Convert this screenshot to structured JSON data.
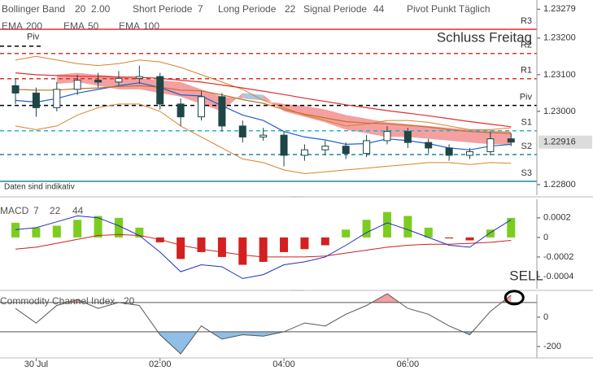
{
  "header": {
    "bollinger": {
      "label": "Bollinger Band",
      "period": 20,
      "width": "2.00"
    },
    "short": {
      "label": "Short Periode",
      "value": 7
    },
    "long": {
      "label": "Long Periode",
      "value": 22
    },
    "signal": {
      "label": "Signal Periode",
      "value": 44
    },
    "pivot": "Pivot Punkt Täglich"
  },
  "chart_data": [
    {
      "type": "candlestick",
      "x": [
        -20,
        0,
        20,
        40,
        60,
        80,
        100,
        120,
        140,
        160,
        180,
        200,
        220,
        240,
        260,
        280,
        300,
        320,
        340,
        360,
        380,
        400,
        420,
        440,
        460
      ],
      "xlim": [
        -35,
        485
      ],
      "open": [
        1.2307,
        1.2305,
        1.2301,
        1.2306,
        1.23085,
        1.2308,
        1.2309,
        1.23095,
        1.2302,
        1.22985,
        1.2304,
        1.2296,
        1.2293,
        1.22935,
        1.2288,
        1.22895,
        1.22905,
        1.22885,
        1.2292,
        1.22945,
        1.22915,
        1.229,
        1.2288,
        1.2289,
        1.22925
      ],
      "high": [
        1.2309,
        1.23065,
        1.2308,
        1.231,
        1.23105,
        1.2311,
        1.23125,
        1.23105,
        1.23035,
        1.23055,
        1.2305,
        1.22975,
        1.22955,
        1.22945,
        1.2291,
        1.2292,
        1.22915,
        1.22935,
        1.2296,
        1.22955,
        1.22925,
        1.2291,
        1.229,
        1.22945,
        1.2294
      ],
      "low": [
        1.2302,
        1.22985,
        1.23,
        1.23045,
        1.23065,
        1.2307,
        1.23075,
        1.23005,
        1.2296,
        1.22975,
        1.22945,
        1.22915,
        1.2292,
        1.2285,
        1.22865,
        1.2288,
        1.2287,
        1.22875,
        1.2291,
        1.229,
        1.22885,
        1.22865,
        1.2287,
        1.2288,
        1.22905
      ],
      "close": [
        1.2305,
        1.2301,
        1.2306,
        1.23085,
        1.2308,
        1.2309,
        1.23095,
        1.2302,
        1.22985,
        1.2304,
        1.2296,
        1.2293,
        1.22935,
        1.2288,
        1.22895,
        1.22905,
        1.22885,
        1.2292,
        1.22945,
        1.22915,
        1.229,
        1.2288,
        1.2289,
        1.22925,
        1.22916
      ],
      "up_color": "#ffffff",
      "down_color": "#1e4646",
      "ylim": [
        1.22771,
        1.23304
      ],
      "yticks": [
        1.23279,
        {
          "value": 1.232,
          "label": "1.23200"
        },
        {
          "value": 1.231,
          "label": "1.23100"
        },
        {
          "value": 1.23,
          "label": "1.23000"
        },
        {
          "value": 1.228,
          "label": "1.22800"
        }
      ],
      "last_price": 1.22916,
      "bands": {
        "upper": [
          1.2314,
          1.2315,
          1.2314,
          1.2313,
          1.23125,
          1.2313,
          1.2314,
          1.23135,
          1.2312,
          1.231,
          1.2308,
          1.2306,
          1.2303,
          1.2301,
          1.2299,
          1.22975,
          1.2296,
          1.22965,
          1.22975,
          1.22975,
          1.2297,
          1.2296,
          1.2295,
          1.2295,
          1.22955
        ],
        "lower": [
          1.2296,
          1.2295,
          1.2296,
          1.2299,
          1.2301,
          1.2302,
          1.2302,
          1.23,
          1.2296,
          1.2293,
          1.229,
          1.2287,
          1.2286,
          1.2284,
          1.2283,
          1.22835,
          1.2284,
          1.22845,
          1.2285,
          1.22855,
          1.2286,
          1.2286,
          1.22855,
          1.2286,
          1.22858
        ],
        "color": "#d9822b"
      },
      "cloud": {
        "span_a": [
          null,
          null,
          1.231,
          1.23105,
          1.231,
          1.23095,
          1.2309,
          1.23085,
          1.2308,
          1.2306,
          1.2304,
          1.23035,
          1.2303,
          1.2302,
          1.23015,
          1.23005,
          1.2299,
          1.2298,
          1.2297,
          1.22965,
          1.2296,
          1.22955,
          1.2295,
          1.22948,
          1.22945
        ],
        "span_b": [
          null,
          null,
          1.23075,
          1.2308,
          1.2307,
          1.2306,
          1.2306,
          1.2305,
          1.2304,
          1.2302,
          1.23,
          1.2305,
          1.23045,
          1.23,
          1.22985,
          1.2297,
          1.2295,
          1.2294,
          1.2293,
          1.2293,
          1.22925,
          1.2292,
          1.22915,
          1.2291,
          1.2291
        ],
        "up_color": "#f08080",
        "down_color": "#8fb4d8"
      },
      "series_label": "EMA",
      "series": [
        {
          "name": "200",
          "color": "#e03030",
          "values": [
            1.23105,
            1.231,
            1.23098,
            1.23096,
            1.23095,
            1.23094,
            1.23093,
            1.2309,
            1.23085,
            1.2308,
            1.23072,
            1.23064,
            1.23055,
            1.23046,
            1.23036,
            1.23027,
            1.23018,
            1.2301,
            1.23002,
            1.22995,
            1.22988,
            1.2298,
            1.22972,
            1.22965,
            1.22958
          ]
        },
        {
          "name": "50",
          "color": "#1f5fd0",
          "values": [
            1.2303,
            1.23025,
            1.23035,
            1.2305,
            1.2306,
            1.2307,
            1.23078,
            1.23065,
            1.23045,
            1.23042,
            1.23015,
            1.2299,
            1.22975,
            1.22945,
            1.2293,
            1.22922,
            1.2291,
            1.22912,
            1.22925,
            1.2292,
            1.22912,
            1.229,
            1.22895,
            1.22905,
            1.2291
          ]
        },
        {
          "name": "100",
          "color": "#c07030",
          "values": [
            1.2306,
            1.23058,
            1.23058,
            1.23062,
            1.23064,
            1.23068,
            1.2307,
            1.23066,
            1.23058,
            1.23056,
            1.23045,
            1.23032,
            1.23022,
            1.23005,
            1.22992,
            1.22982,
            1.22972,
            1.22968,
            1.22966,
            1.22962,
            1.22957,
            1.2295,
            1.22945,
            1.22942,
            1.2294
          ]
        }
      ],
      "pivots": [
        {
          "label": "R3",
          "value": 1.23224,
          "color": "#e03030",
          "dash": false
        },
        {
          "label": "R2",
          "value": 1.23158,
          "color": "#e03030",
          "dash": true
        },
        {
          "label": "R1",
          "value": 1.23089,
          "color": "#e03030",
          "dash": true
        },
        {
          "label": "Piv",
          "value": 1.23016,
          "color": "#000000",
          "dash": true
        },
        {
          "label": "S1",
          "value": 1.22947,
          "color": "#2bb5c8",
          "dash": true
        },
        {
          "label": "S2",
          "value": 1.22882,
          "color": "#1a8a9a",
          "dash": true
        },
        {
          "label": "S3",
          "value": 1.22809,
          "color": "#1a8a9a",
          "dash": false
        }
      ],
      "prev_pivot": {
        "label": "Piv",
        "value": 1.23178
      },
      "annotations": [
        "Schluss Freitag",
        "Daten sind indikativ"
      ]
    },
    {
      "type": "macd",
      "title": "MACD",
      "params": [
        7,
        22,
        44
      ],
      "param_colors": [
        "#d9822b",
        "#e03030",
        "#e03030"
      ],
      "x": [
        -20,
        0,
        20,
        40,
        60,
        80,
        100,
        120,
        140,
        160,
        180,
        200,
        220,
        240,
        260,
        280,
        300,
        320,
        340,
        360,
        380,
        400,
        420,
        440,
        460
      ],
      "xlim": [
        -35,
        485
      ],
      "histogram": [
        0.00015,
        0.0001,
        0.00012,
        0.00018,
        0.00022,
        0.0002,
        0.0001,
        -5e-05,
        -0.00022,
        -0.00015,
        -0.0002,
        -0.00028,
        -0.00025,
        -0.00015,
        -0.00012,
        -8e-05,
        8e-05,
        0.00018,
        0.00026,
        0.00022,
        0.0001,
        -1e-05,
        -3e-05,
        8e-05,
        0.0002
      ],
      "up_color": "#7ccd1f",
      "down_color": "#d42020",
      "macd": {
        "color": "#2030c0",
        "values": [
          8e-05,
          0.0001,
          0.00016,
          0.00022,
          0.0002,
          0.00012,
          2e-05,
          -0.00015,
          -0.00035,
          -0.00028,
          -0.0003,
          -0.00042,
          -0.00038,
          -0.00028,
          -0.00025,
          -0.0002,
          -8e-05,
          5e-05,
          0.00015,
          8e-05,
          0,
          -8e-05,
          -0.0001,
          5e-05,
          0.00018
        ]
      },
      "signal": {
        "color": "#d02020",
        "values": [
          -0.00012,
          -0.0001,
          -6e-05,
          -2e-05,
          2e-05,
          3e-05,
          2e-05,
          -2e-05,
          -8e-05,
          -0.00012,
          -0.00015,
          -0.00018,
          -0.0002,
          -0.0002,
          -0.0002,
          -0.00019,
          -0.00016,
          -0.00013,
          -0.0001,
          -8e-05,
          -7e-05,
          -7e-05,
          -6e-05,
          -5e-05,
          -3e-05
        ]
      },
      "ylim": [
        -0.000525,
        0.00039
      ],
      "yticks": [
        0.0002,
        0,
        -0.0002,
        -0.0004
      ]
    },
    {
      "type": "cci",
      "title": "Commodity Channel Index",
      "period": 20,
      "x": [
        -20,
        0,
        20,
        40,
        60,
        80,
        100,
        120,
        140,
        160,
        180,
        200,
        220,
        240,
        260,
        280,
        300,
        320,
        340,
        360,
        380,
        400,
        420,
        440,
        460
      ],
      "xlim": [
        -35,
        485
      ],
      "values": [
        60,
        -40,
        80,
        120,
        60,
        100,
        80,
        -120,
        -250,
        -60,
        -150,
        -120,
        -130,
        -100,
        -40,
        -60,
        20,
        80,
        160,
        60,
        20,
        -60,
        -120,
        40,
        150
      ],
      "color": "#555555",
      "over_color": "#f4a0a0",
      "under_color": "#8fbfe6",
      "ylim": [
        -278,
        155
      ],
      "yticks": [
        0,
        -200
      ],
      "levels": [
        100,
        -100
      ],
      "xticks": [
        {
          "value": 0,
          "label": "30 Jul"
        },
        {
          "value": 120,
          "label": "02:00"
        },
        {
          "value": 240,
          "label": "04:00"
        },
        {
          "value": 360,
          "label": "06:00"
        }
      ],
      "annotation": "SELL"
    }
  ]
}
